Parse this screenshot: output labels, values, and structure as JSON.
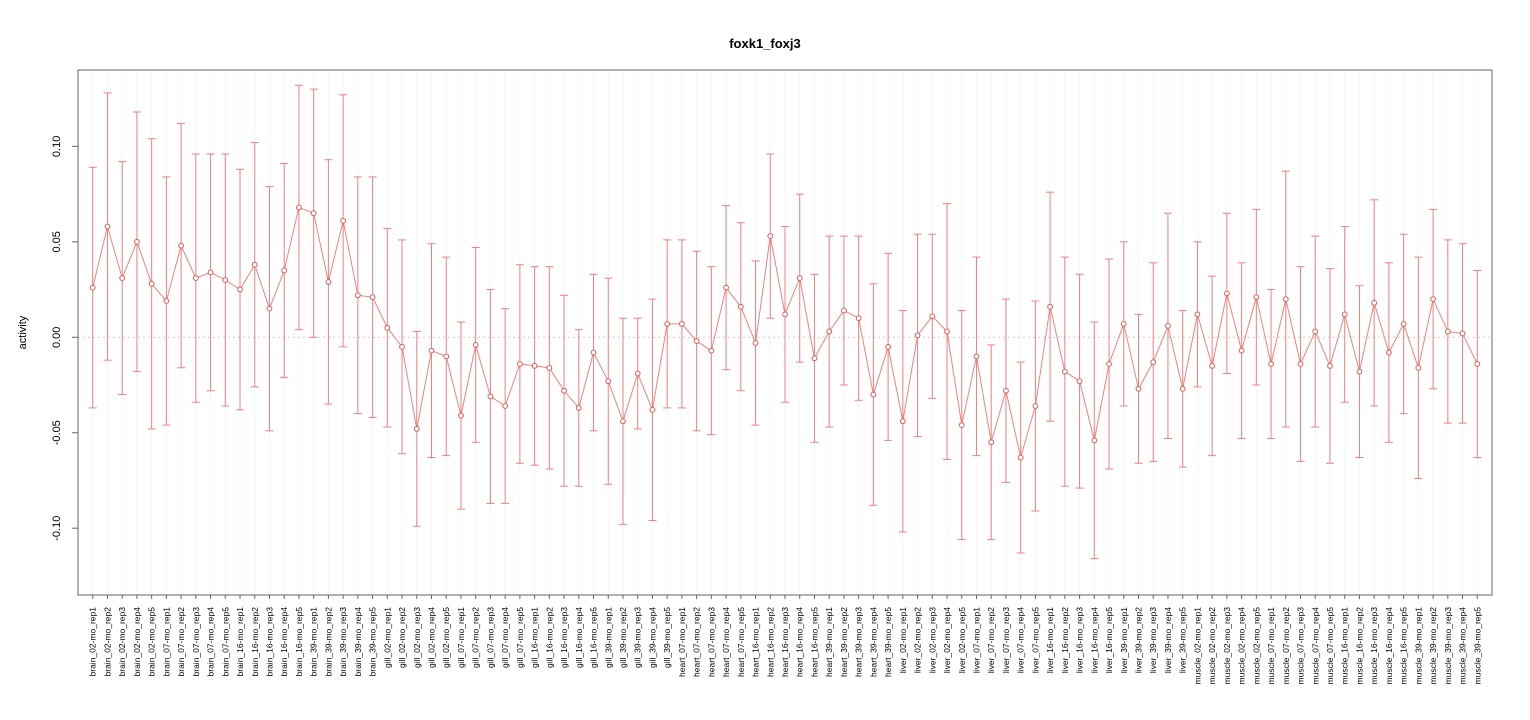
{
  "window": {
    "background": "#ffffff"
  },
  "chart_data": {
    "type": "line",
    "title": "foxk1_foxj3",
    "xlabel": "",
    "ylabel": "activity",
    "legend": "none",
    "grid": "vertical-dotted-per-category",
    "zero_line": "dotted",
    "ylim": [
      -0.135,
      0.14
    ],
    "yticks": [
      -0.1,
      -0.05,
      0.0,
      0.05,
      0.1
    ],
    "ytick_labels": [
      "-0.10",
      "-0.05",
      "0.00",
      "0.05",
      "0.10"
    ],
    "series_color": "#ee7272",
    "point_color": "#e05858",
    "grid_color": "#e0e0e0",
    "axis_color": "#666666",
    "categories": [
      "brain_02-mo_rep1",
      "brain_02-mo_rep2",
      "brain_02-mo_rep3",
      "brain_02-mo_rep4",
      "brain_02-mo_rep5",
      "brain_07-mo_rep1",
      "brain_07-mo_rep2",
      "brain_07-mo_rep3",
      "brain_07-mo_rep4",
      "brain_07-mo_rep5",
      "brain_16-mo_rep1",
      "brain_16-mo_rep2",
      "brain_16-mo_rep3",
      "brain_16-mo_rep4",
      "brain_16-mo_rep5",
      "brain_39-mo_rep1",
      "brain_39-mo_rep2",
      "brain_39-mo_rep3",
      "brain_39-mo_rep4",
      "brain_39-mo_rep5",
      "gill_02-mo_rep1",
      "gill_02-mo_rep2",
      "gill_02-mo_rep3",
      "gill_02-mo_rep4",
      "gill_02-mo_rep5",
      "gill_07-mo_rep1",
      "gill_07-mo_rep2",
      "gill_07-mo_rep3",
      "gill_07-mo_rep4",
      "gill_07-mo_rep5",
      "gill_16-mo_rep1",
      "gill_16-mo_rep2",
      "gill_16-mo_rep3",
      "gill_16-mo_rep4",
      "gill_16-mo_rep5",
      "gill_39-mo_rep1",
      "gill_39-mo_rep2",
      "gill_39-mo_rep3",
      "gill_39-mo_rep4",
      "gill_39-mo_rep5",
      "heart_07-mo_rep1",
      "heart_07-mo_rep2",
      "heart_07-mo_rep3",
      "heart_07-mo_rep4",
      "heart_07-mo_rep5",
      "heart_16-mo_rep1",
      "heart_16-mo_rep2",
      "heart_16-mo_rep3",
      "heart_16-mo_rep4",
      "heart_16-mo_rep5",
      "heart_39-mo_rep1",
      "heart_39-mo_rep2",
      "heart_39-mo_rep3",
      "heart_39-mo_rep4",
      "heart_39-mo_rep5",
      "liver_02-mo_rep1",
      "liver_02-mo_rep2",
      "liver_02-mo_rep3",
      "liver_02-mo_rep4",
      "liver_02-mo_rep5",
      "liver_07-mo_rep1",
      "liver_07-mo_rep2",
      "liver_07-mo_rep3",
      "liver_07-mo_rep4",
      "liver_07-mo_rep5",
      "liver_16-mo_rep1",
      "liver_16-mo_rep2",
      "liver_16-mo_rep3",
      "liver_16-mo_rep4",
      "liver_16-mo_rep5",
      "liver_39-mo_rep1",
      "liver_39-mo_rep2",
      "liver_39-mo_rep3",
      "liver_39-mo_rep4",
      "liver_39-mo_rep5",
      "muscle_02-mo_rep1",
      "muscle_02-mo_rep2",
      "muscle_02-mo_rep3",
      "muscle_02-mo_rep4",
      "muscle_02-mo_rep5",
      "muscle_07-mo_rep1",
      "muscle_07-mo_rep2",
      "muscle_07-mo_rep3",
      "muscle_07-mo_rep4",
      "muscle_07-mo_rep5",
      "muscle_16-mo_rep1",
      "muscle_16-mo_rep2",
      "muscle_16-mo_rep3",
      "muscle_16-mo_rep4",
      "muscle_16-mo_rep5",
      "muscle_39-mo_rep1",
      "muscle_39-mo_rep2",
      "muscle_39-mo_rep3",
      "muscle_39-mo_rep4",
      "muscle_39-mo_rep5"
    ],
    "values": [
      0.026,
      0.058,
      0.031,
      0.05,
      0.028,
      0.019,
      0.048,
      0.031,
      0.034,
      0.03,
      0.025,
      0.038,
      0.015,
      0.035,
      0.068,
      0.065,
      0.029,
      0.061,
      0.022,
      0.021,
      0.005,
      -0.005,
      -0.048,
      -0.007,
      -0.01,
      -0.041,
      -0.004,
      -0.031,
      -0.036,
      -0.014,
      -0.015,
      -0.016,
      -0.028,
      -0.037,
      -0.008,
      -0.023,
      -0.044,
      -0.019,
      -0.038,
      0.007,
      0.007,
      -0.002,
      -0.007,
      0.026,
      0.016,
      -0.003,
      0.053,
      0.012,
      0.031,
      -0.011,
      0.003,
      0.014,
      0.01,
      -0.03,
      -0.005,
      -0.044,
      0.001,
      0.011,
      0.003,
      -0.046,
      -0.01,
      -0.055,
      -0.028,
      -0.063,
      -0.036,
      0.016,
      -0.018,
      -0.023,
      -0.054,
      -0.014,
      0.007,
      -0.027,
      -0.013,
      0.006,
      -0.027,
      0.012,
      -0.015,
      0.023,
      -0.007,
      0.021,
      -0.014,
      0.02,
      -0.014,
      0.003,
      -0.015,
      0.012,
      -0.018,
      0.018,
      -0.008,
      0.007,
      -0.016,
      0.02,
      0.003,
      0.002,
      -0.014
    ],
    "errors": [
      0.063,
      0.07,
      0.061,
      0.068,
      0.076,
      0.065,
      0.064,
      0.065,
      0.062,
      0.066,
      0.063,
      0.064,
      0.064,
      0.056,
      0.064,
      0.065,
      0.064,
      0.066,
      0.062,
      0.063,
      0.052,
      0.056,
      0.051,
      0.056,
      0.052,
      0.049,
      0.051,
      0.056,
      0.051,
      0.052,
      0.052,
      0.053,
      0.05,
      0.041,
      0.041,
      0.054,
      0.054,
      0.029,
      0.058,
      0.044,
      0.044,
      0.047,
      0.044,
      0.043,
      0.044,
      0.043,
      0.043,
      0.046,
      0.044,
      0.044,
      0.05,
      0.039,
      0.043,
      0.058,
      0.049,
      0.058,
      0.053,
      0.043,
      0.067,
      0.06,
      0.052,
      0.051,
      0.048,
      0.05,
      0.055,
      0.06,
      0.06,
      0.056,
      0.062,
      0.055,
      0.043,
      0.039,
      0.052,
      0.059,
      0.041,
      0.038,
      0.047,
      0.042,
      0.046,
      0.046,
      0.039,
      0.067,
      0.051,
      0.05,
      0.051,
      0.046,
      0.045,
      0.054,
      0.047,
      0.047,
      0.058,
      0.047,
      0.048,
      0.047,
      0.049
    ]
  }
}
